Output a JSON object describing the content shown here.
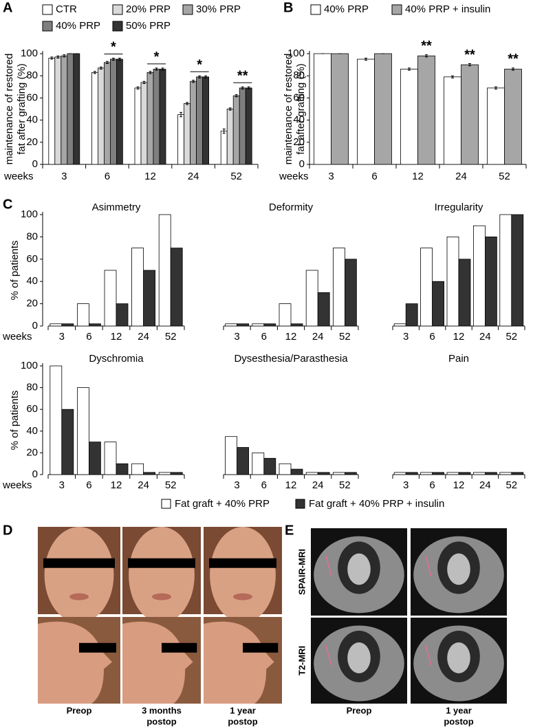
{
  "chart_data": [
    {
      "type": "bar",
      "panel": "A",
      "ylabel": [
        "maintenance of restored",
        "fat after grafting (%)"
      ],
      "xlabel": "weeks",
      "categories": [
        "3",
        "6",
        "12",
        "24",
        "52"
      ],
      "ylim": [
        0,
        100
      ],
      "yticks": [
        0,
        20,
        40,
        60,
        80,
        100
      ],
      "significance": [
        null,
        "*",
        "*",
        "*",
        "**"
      ],
      "significance_line": true,
      "series": [
        {
          "name": "CTR",
          "color": "#ffffff",
          "values": [
            96,
            83,
            69,
            45,
            30
          ],
          "errors": [
            1,
            1,
            1,
            2,
            2
          ]
        },
        {
          "name": "20% PRP",
          "color": "#d9d9d9",
          "values": [
            97,
            87,
            74,
            55,
            50
          ],
          "errors": [
            1,
            1,
            1,
            1,
            1
          ]
        },
        {
          "name": "30% PRP",
          "color": "#a6a6a6",
          "values": [
            98,
            92,
            83,
            75,
            62
          ],
          "errors": [
            1,
            1,
            1,
            1,
            1
          ]
        },
        {
          "name": "40% PRP",
          "color": "#7f7f7f",
          "values": [
            100,
            95,
            86,
            79,
            69
          ],
          "errors": [
            0,
            1,
            1,
            1,
            1
          ]
        },
        {
          "name": "50% PRP",
          "color": "#333333",
          "values": [
            100,
            95,
            86,
            79,
            69
          ],
          "errors": [
            0,
            1,
            1,
            1,
            1
          ]
        }
      ]
    },
    {
      "type": "bar",
      "panel": "B",
      "ylabel": [
        "maintenance of restored",
        "fat after grafting (%)"
      ],
      "xlabel": "weeks",
      "categories": [
        "3",
        "6",
        "12",
        "24",
        "52"
      ],
      "ylim": [
        0,
        100
      ],
      "yticks": [
        0,
        20,
        40,
        60,
        80,
        100
      ],
      "significance": [
        null,
        null,
        "**",
        "**",
        "**"
      ],
      "significance_line": false,
      "series": [
        {
          "name": "40% PRP",
          "color": "#ffffff",
          "values": [
            100,
            95,
            86,
            79,
            69
          ],
          "errors": [
            0,
            1,
            1,
            1,
            1
          ]
        },
        {
          "name": "40% PRP + insulin",
          "color": "#a6a6a6",
          "values": [
            100,
            100,
            98,
            90,
            86
          ],
          "errors": [
            0,
            0,
            1,
            1,
            1
          ]
        }
      ]
    },
    {
      "type": "facet-bar",
      "panel": "C",
      "ylabel": "% of patients",
      "xlabel": "weeks",
      "categories": [
        "3",
        "6",
        "12",
        "24",
        "52"
      ],
      "ylim": [
        0,
        100
      ],
      "yticks": [
        0,
        20,
        40,
        60,
        80,
        100
      ],
      "series": [
        {
          "name": "Fat graft + 40% PRP",
          "color": "#ffffff"
        },
        {
          "name": "Fat graft + 40% PRP + insulin",
          "color": "#333333"
        }
      ],
      "facets": [
        {
          "title": "Asimmetry",
          "values": [
            [
              2,
              20,
              50,
              70,
              100
            ],
            [
              2,
              2,
              20,
              50,
              70
            ]
          ]
        },
        {
          "title": "Deformity",
          "values": [
            [
              2,
              2,
              20,
              50,
              70
            ],
            [
              2,
              2,
              2,
              30,
              60
            ]
          ]
        },
        {
          "title": "Irregularity",
          "values": [
            [
              2,
              70,
              80,
              90,
              100
            ],
            [
              20,
              40,
              60,
              80,
              100
            ]
          ]
        },
        {
          "title": "Dyschromia",
          "values": [
            [
              100,
              80,
              30,
              10,
              2
            ],
            [
              60,
              30,
              10,
              2,
              2
            ]
          ]
        },
        {
          "title": "Dysesthesia/Parasthesia",
          "values": [
            [
              35,
              20,
              10,
              2,
              2
            ],
            [
              25,
              15,
              5,
              2,
              2
            ]
          ]
        },
        {
          "title": "Pain",
          "values": [
            [
              2,
              2,
              2,
              2,
              2
            ],
            [
              2,
              2,
              2,
              2,
              2
            ]
          ]
        }
      ]
    }
  ],
  "panel_d": {
    "letter": "D",
    "columns": [
      [
        "Preop"
      ],
      [
        "3 months",
        "postop"
      ],
      [
        "1 year",
        "postop"
      ]
    ]
  },
  "panel_e": {
    "letter": "E",
    "rows": [
      "SPAIR-MRI",
      "T2-MRI"
    ],
    "columns": [
      [
        "Preop"
      ],
      [
        "1 year",
        "postop"
      ]
    ]
  }
}
